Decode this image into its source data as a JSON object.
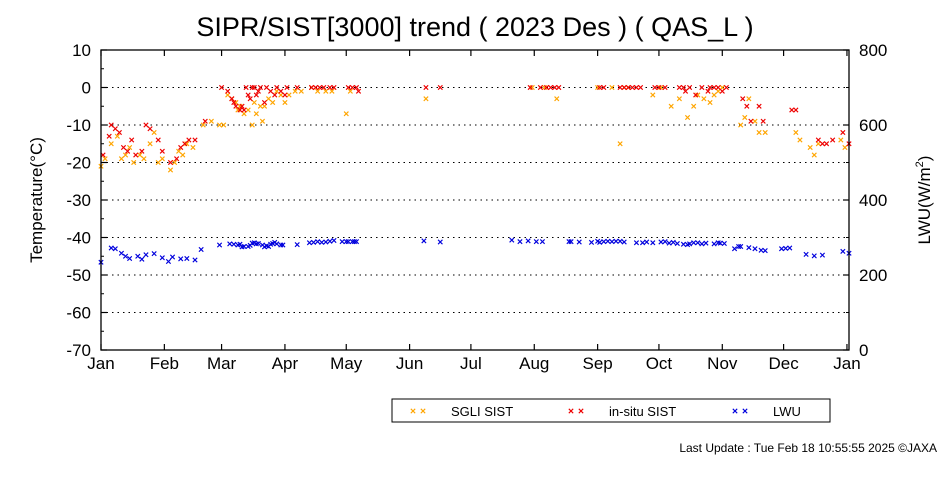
{
  "chart_data": {
    "type": "scatter",
    "title": "SIPR/SIST[3000] trend ( 2023 Des ) ( QAS_L )",
    "ylabel": "Temperature(°C)",
    "y2label_main": "LWU(W/m",
    "y2label_sup": "2",
    "y2label_end": ")",
    "ylim": [
      -70,
      10
    ],
    "y2lim": [
      0,
      800
    ],
    "yticks": [
      10,
      0,
      -10,
      -20,
      -30,
      -40,
      -50,
      -60,
      -70
    ],
    "y2ticks": [
      800,
      600,
      400,
      200,
      0
    ],
    "gridlines_y": [
      0,
      -10,
      -20,
      -30,
      -40,
      -50,
      -60
    ],
    "grid": "dotted horizontal",
    "xlim": [
      0,
      366
    ],
    "xticks": [
      {
        "label": "Jan",
        "day": 0
      },
      {
        "label": "Feb",
        "day": 31
      },
      {
        "label": "Mar",
        "day": 59
      },
      {
        "label": "Apr",
        "day": 90
      },
      {
        "label": "May",
        "day": 120
      },
      {
        "label": "Jun",
        "day": 151
      },
      {
        "label": "Jul",
        "day": 181
      },
      {
        "label": "Aug",
        "day": 212
      },
      {
        "label": "Sep",
        "day": 243
      },
      {
        "label": "Oct",
        "day": 273
      },
      {
        "label": "Nov",
        "day": 304
      },
      {
        "label": "Dec",
        "day": 334
      },
      {
        "label": "Jan",
        "day": 365
      }
    ],
    "legend_position": "bottom-right",
    "series": [
      {
        "name": "SGLI SIST",
        "color": "#ffa500",
        "axis": "left",
        "points": [
          [
            0,
            -21
          ],
          [
            2,
            -19
          ],
          [
            5,
            -15
          ],
          [
            8,
            -13
          ],
          [
            10,
            -19
          ],
          [
            12,
            -18
          ],
          [
            14,
            -16
          ],
          [
            16,
            -20
          ],
          [
            19,
            -18
          ],
          [
            21,
            -19
          ],
          [
            24,
            -15
          ],
          [
            26,
            -12
          ],
          [
            28,
            -20
          ],
          [
            30,
            -19
          ],
          [
            34,
            -22
          ],
          [
            36,
            -20
          ],
          [
            38,
            -17
          ],
          [
            40,
            -18
          ],
          [
            42,
            -15
          ],
          [
            45,
            -16
          ],
          [
            50,
            -10
          ],
          [
            54,
            -9
          ],
          [
            58,
            -10
          ],
          [
            60,
            -10
          ],
          [
            62,
            -2
          ],
          [
            64,
            -3
          ],
          [
            66,
            -4
          ],
          [
            67,
            -6
          ],
          [
            68,
            -5
          ],
          [
            70,
            -7
          ],
          [
            72,
            -6
          ],
          [
            74,
            -10
          ],
          [
            75,
            -4
          ],
          [
            76,
            -7
          ],
          [
            78,
            -5
          ],
          [
            79,
            -9
          ],
          [
            80,
            -5
          ],
          [
            82,
            -3
          ],
          [
            84,
            -4
          ],
          [
            86,
            -1
          ],
          [
            88,
            -2
          ],
          [
            90,
            -4
          ],
          [
            92,
            -2
          ],
          [
            95,
            -1
          ],
          [
            98,
            -1
          ],
          [
            103,
            0
          ],
          [
            106,
            -1
          ],
          [
            110,
            -1
          ],
          [
            113,
            -1
          ],
          [
            120,
            -7
          ],
          [
            122,
            -1
          ],
          [
            159,
            -3
          ],
          [
            211,
            0
          ],
          [
            217,
            0
          ],
          [
            223,
            -3
          ],
          [
            243,
            0
          ],
          [
            250,
            0
          ],
          [
            254,
            -15
          ],
          [
            256,
            0
          ],
          [
            258,
            0
          ],
          [
            270,
            -2
          ],
          [
            274,
            0
          ],
          [
            279,
            -5
          ],
          [
            283,
            -3
          ],
          [
            287,
            -8
          ],
          [
            290,
            -5
          ],
          [
            292,
            -2
          ],
          [
            295,
            -3
          ],
          [
            298,
            -4
          ],
          [
            300,
            -2
          ],
          [
            302,
            -1
          ],
          [
            304,
            0
          ],
          [
            313,
            -10
          ],
          [
            315,
            -8
          ],
          [
            317,
            -3
          ],
          [
            320,
            -9
          ],
          [
            322,
            -12
          ],
          [
            325,
            -12
          ],
          [
            340,
            -12
          ],
          [
            342,
            -14
          ],
          [
            347,
            -16
          ],
          [
            349,
            -18
          ],
          [
            351,
            -15
          ],
          [
            362,
            -14
          ],
          [
            364,
            -16
          ]
        ]
      },
      {
        "name": "in-situ SIST",
        "color": "#ee0000",
        "axis": "left",
        "points": [
          [
            1,
            -18
          ],
          [
            4,
            -13
          ],
          [
            5,
            -10
          ],
          [
            7,
            -11
          ],
          [
            9,
            -12
          ],
          [
            11,
            -16
          ],
          [
            13,
            -17
          ],
          [
            15,
            -14
          ],
          [
            17,
            -18
          ],
          [
            20,
            -17
          ],
          [
            22,
            -10
          ],
          [
            24,
            -11
          ],
          [
            28,
            -14
          ],
          [
            30,
            -17
          ],
          [
            34,
            -20
          ],
          [
            37,
            -19
          ],
          [
            39,
            -16
          ],
          [
            41,
            -15
          ],
          [
            43,
            -14
          ],
          [
            46,
            -14
          ],
          [
            51,
            -9
          ],
          [
            59,
            0
          ],
          [
            62,
            -1
          ],
          [
            64,
            -3
          ],
          [
            65,
            -4
          ],
          [
            66,
            -5
          ],
          [
            68,
            -6
          ],
          [
            69,
            -5
          ],
          [
            70,
            -6
          ],
          [
            71,
            0
          ],
          [
            72,
            -2
          ],
          [
            73,
            -3
          ],
          [
            74,
            0
          ],
          [
            75,
            0
          ],
          [
            76,
            -2
          ],
          [
            77,
            -1
          ],
          [
            78,
            0
          ],
          [
            80,
            -4
          ],
          [
            81,
            0
          ],
          [
            83,
            -1
          ],
          [
            85,
            -2
          ],
          [
            86,
            0
          ],
          [
            88,
            -1
          ],
          [
            90,
            -2
          ],
          [
            91,
            0
          ],
          [
            96,
            0
          ],
          [
            103,
            0
          ],
          [
            105,
            0
          ],
          [
            107,
            0
          ],
          [
            109,
            0
          ],
          [
            112,
            0
          ],
          [
            114,
            0
          ],
          [
            121,
            0
          ],
          [
            123,
            0
          ],
          [
            125,
            0
          ],
          [
            126,
            -1
          ],
          [
            159,
            0
          ],
          [
            166,
            0
          ],
          [
            210,
            0
          ],
          [
            215,
            0
          ],
          [
            218,
            0
          ],
          [
            220,
            0
          ],
          [
            222,
            0
          ],
          [
            224,
            0
          ],
          [
            244,
            0
          ],
          [
            246,
            0
          ],
          [
            254,
            0
          ],
          [
            256,
            0
          ],
          [
            258,
            0
          ],
          [
            260,
            0
          ],
          [
            262,
            0
          ],
          [
            264,
            0
          ],
          [
            271,
            0
          ],
          [
            273,
            0
          ],
          [
            276,
            0
          ],
          [
            283,
            0
          ],
          [
            285,
            0
          ],
          [
            286,
            -1
          ],
          [
            288,
            0
          ],
          [
            291,
            -2
          ],
          [
            294,
            0
          ],
          [
            297,
            -1
          ],
          [
            298,
            0
          ],
          [
            300,
            0
          ],
          [
            302,
            0
          ],
          [
            304,
            -1
          ],
          [
            306,
            0
          ],
          [
            314,
            -3
          ],
          [
            316,
            -5
          ],
          [
            318,
            -9
          ],
          [
            322,
            -5
          ],
          [
            324,
            -9
          ],
          [
            338,
            -6
          ],
          [
            340,
            -6
          ],
          [
            351,
            -14
          ],
          [
            353,
            -15
          ],
          [
            355,
            -15
          ],
          [
            358,
            -14
          ],
          [
            363,
            -12
          ],
          [
            366,
            -15
          ]
        ]
      },
      {
        "name": "LWU",
        "color": "#0000dd",
        "axis": "right",
        "points": [
          [
            0,
            234
          ],
          [
            5,
            272
          ],
          [
            7,
            270
          ],
          [
            10,
            258
          ],
          [
            12,
            250
          ],
          [
            14,
            244
          ],
          [
            18,
            250
          ],
          [
            20,
            242
          ],
          [
            22,
            254
          ],
          [
            26,
            257
          ],
          [
            30,
            246
          ],
          [
            33,
            236
          ],
          [
            35,
            248
          ],
          [
            39,
            243
          ],
          [
            42,
            244
          ],
          [
            46,
            240
          ],
          [
            49,
            268
          ],
          [
            58,
            280
          ],
          [
            63,
            283
          ],
          [
            65,
            282
          ],
          [
            67,
            280
          ],
          [
            68,
            282
          ],
          [
            69,
            275
          ],
          [
            70,
            276
          ],
          [
            72,
            276
          ],
          [
            73,
            279
          ],
          [
            74,
            285
          ],
          [
            75,
            286
          ],
          [
            76,
            283
          ],
          [
            77,
            284
          ],
          [
            79,
            280
          ],
          [
            80,
            275
          ],
          [
            81,
            278
          ],
          [
            82,
            276
          ],
          [
            83,
            282
          ],
          [
            84,
            284
          ],
          [
            85,
            287
          ],
          [
            86,
            283
          ],
          [
            88,
            280
          ],
          [
            89,
            280
          ],
          [
            96,
            281
          ],
          [
            102,
            286
          ],
          [
            104,
            287
          ],
          [
            106,
            289
          ],
          [
            108,
            287
          ],
          [
            110,
            288
          ],
          [
            112,
            290
          ],
          [
            114,
            292
          ],
          [
            118,
            289
          ],
          [
            120,
            289
          ],
          [
            121,
            289
          ],
          [
            123,
            289
          ],
          [
            124,
            289
          ],
          [
            125,
            289
          ],
          [
            158,
            291
          ],
          [
            166,
            288
          ],
          [
            201,
            293
          ],
          [
            205,
            289
          ],
          [
            209,
            291
          ],
          [
            213,
            289
          ],
          [
            216,
            289
          ],
          [
            229,
            289
          ],
          [
            230,
            289
          ],
          [
            234,
            288
          ],
          [
            240,
            287
          ],
          [
            243,
            290
          ],
          [
            244,
            287
          ],
          [
            246,
            289
          ],
          [
            248,
            290
          ],
          [
            250,
            289
          ],
          [
            252,
            290
          ],
          [
            254,
            290
          ],
          [
            256,
            288
          ],
          [
            262,
            286
          ],
          [
            265,
            286
          ],
          [
            267,
            288
          ],
          [
            270,
            286
          ],
          [
            274,
            288
          ],
          [
            276,
            289
          ],
          [
            278,
            285
          ],
          [
            280,
            287
          ],
          [
            282,
            284
          ],
          [
            285,
            282
          ],
          [
            287,
            281
          ],
          [
            288,
            283
          ],
          [
            290,
            286
          ],
          [
            292,
            286
          ],
          [
            294,
            283
          ],
          [
            296,
            285
          ],
          [
            300,
            283
          ],
          [
            302,
            286
          ],
          [
            303,
            285
          ],
          [
            305,
            284
          ],
          [
            310,
            270
          ],
          [
            312,
            276
          ],
          [
            313,
            276
          ],
          [
            317,
            273
          ],
          [
            320,
            270
          ],
          [
            323,
            266
          ],
          [
            325,
            265
          ],
          [
            333,
            270
          ],
          [
            335,
            271
          ],
          [
            337,
            272
          ],
          [
            345,
            255
          ],
          [
            349,
            251
          ],
          [
            353,
            253
          ],
          [
            363,
            263
          ],
          [
            366,
            258
          ]
        ]
      }
    ]
  },
  "footer": {
    "last_update": "Last Update : Tue Feb 18 10:55:55 2025  ©JAXA"
  }
}
